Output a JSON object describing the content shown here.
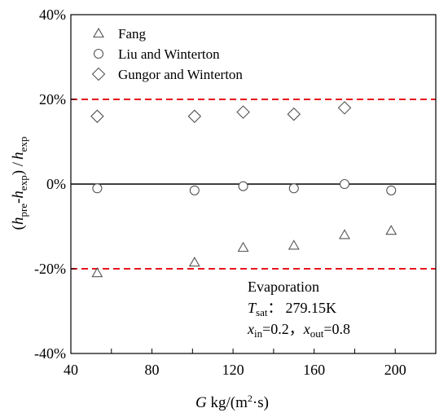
{
  "chart_data": {
    "type": "scatter",
    "x_axis": {
      "range": [
        40,
        220
      ],
      "ticks": [
        40,
        80,
        120,
        160,
        200
      ],
      "tick_labels": [
        "40",
        "80",
        "120",
        "160",
        "200"
      ],
      "label": {
        "main": "G",
        "unit_pre": " kg/(m",
        "unit_sup": "2",
        "unit_post": "·s)"
      }
    },
    "y_axis": {
      "range": [
        -40,
        40
      ],
      "ticks": [
        -40,
        -20,
        0,
        20,
        40
      ],
      "tick_labels": [
        "-40%",
        "-20%",
        "0%",
        "20%",
        "40%"
      ],
      "label": {
        "open": "(",
        "h1": "h",
        "s1": "pre",
        "dash": "-",
        "h2": "h",
        "s2": "exp",
        "close": ") /",
        "h3": "h",
        "s3": "exp"
      }
    },
    "reference_lines": [
      {
        "y": 20,
        "style": "dashed",
        "color": "#e8141c"
      },
      {
        "y": -20,
        "style": "dashed",
        "color": "#e8141c"
      },
      {
        "y": 0,
        "style": "solid",
        "color": "#000000"
      }
    ],
    "series": [
      {
        "name": "Fang",
        "marker": "triangle",
        "x": [
          53,
          101,
          125,
          150,
          175,
          198
        ],
        "y": [
          -21,
          -18.5,
          -15,
          -14.5,
          -12,
          -11
        ]
      },
      {
        "name": "Liu and Winterton",
        "marker": "circle",
        "x": [
          53,
          101,
          125,
          150,
          175,
          198
        ],
        "y": [
          -1,
          -1.5,
          -0.5,
          -1,
          0,
          -1.5
        ]
      },
      {
        "name": "Gungor and Winterton",
        "marker": "diamond",
        "x": [
          53,
          101,
          125,
          150,
          175
        ],
        "y": [
          16,
          16,
          17,
          16.5,
          18
        ]
      }
    ],
    "legend_position": "top-left",
    "annotation": {
      "line1": "Evaporation",
      "line2": {
        "var": "T",
        "sub": "sat",
        "sep": "：",
        "value": "279.15K"
      },
      "line3": {
        "var1": "x",
        "sub1": "in",
        "val1": "=0.2，",
        "var2": "x",
        "sub2": "out",
        "val2": "=0.8"
      }
    },
    "grid": false
  }
}
